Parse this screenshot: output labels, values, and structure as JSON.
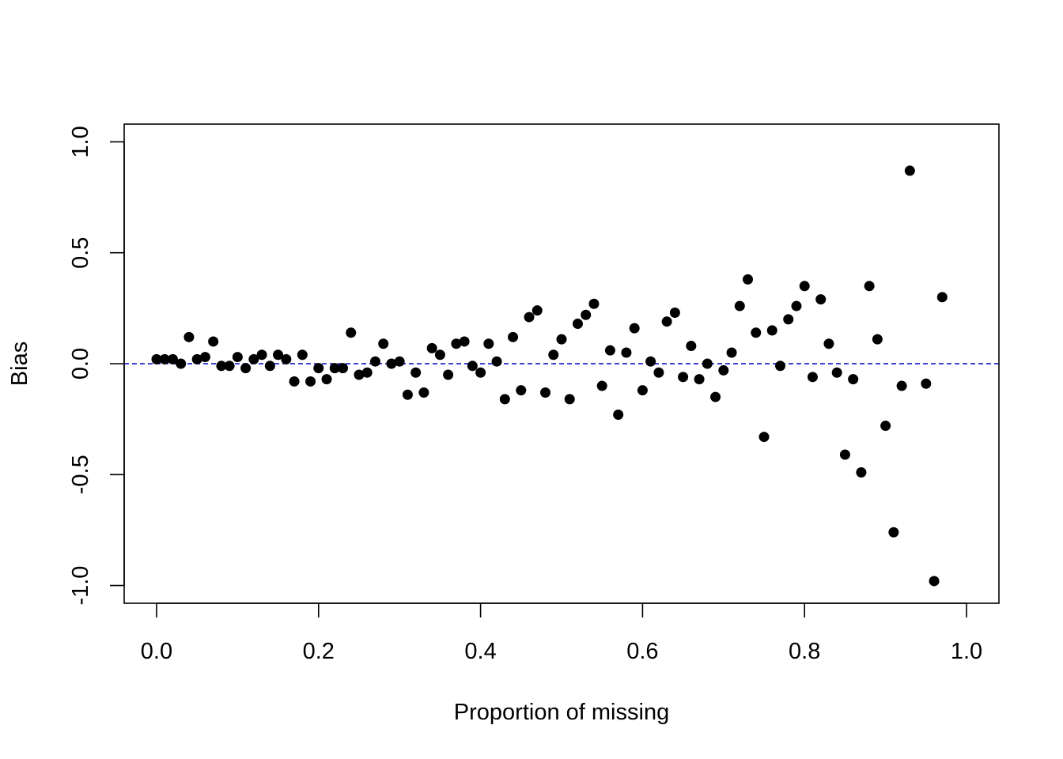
{
  "chart_data": {
    "type": "scatter",
    "title": "",
    "xlabel": "Proportion of missing",
    "ylabel": "Bias",
    "xlim": [
      -0.04,
      1.04
    ],
    "ylim": [
      -1.08,
      1.08
    ],
    "x_ticks": [
      0.0,
      0.2,
      0.4,
      0.6,
      0.8,
      1.0
    ],
    "x_tick_labels": [
      "0.0",
      "0.2",
      "0.4",
      "0.6",
      "0.8",
      "1.0"
    ],
    "y_ticks": [
      -1.0,
      -0.5,
      0.0,
      0.5,
      1.0
    ],
    "y_tick_labels": [
      "-1.0",
      "-0.5",
      "0.0",
      "0.5",
      "1.0"
    ],
    "grid": false,
    "point_color": "#000000",
    "reference_line": {
      "y": 0,
      "style": "dashed",
      "color": "#0000cc"
    },
    "points": [
      [
        0.0,
        0.02
      ],
      [
        0.01,
        0.02
      ],
      [
        0.02,
        0.02
      ],
      [
        0.03,
        0.0
      ],
      [
        0.04,
        0.12
      ],
      [
        0.05,
        0.02
      ],
      [
        0.06,
        0.03
      ],
      [
        0.07,
        0.1
      ],
      [
        0.08,
        -0.01
      ],
      [
        0.09,
        -0.01
      ],
      [
        0.1,
        0.03
      ],
      [
        0.11,
        -0.02
      ],
      [
        0.12,
        0.02
      ],
      [
        0.13,
        0.04
      ],
      [
        0.14,
        -0.01
      ],
      [
        0.15,
        0.04
      ],
      [
        0.16,
        0.02
      ],
      [
        0.17,
        -0.08
      ],
      [
        0.18,
        0.04
      ],
      [
        0.19,
        -0.08
      ],
      [
        0.2,
        -0.02
      ],
      [
        0.21,
        -0.07
      ],
      [
        0.22,
        -0.02
      ],
      [
        0.23,
        -0.02
      ],
      [
        0.24,
        0.14
      ],
      [
        0.25,
        -0.05
      ],
      [
        0.26,
        -0.04
      ],
      [
        0.27,
        0.01
      ],
      [
        0.28,
        0.09
      ],
      [
        0.29,
        0.0
      ],
      [
        0.3,
        0.01
      ],
      [
        0.31,
        -0.14
      ],
      [
        0.32,
        -0.04
      ],
      [
        0.33,
        -0.13
      ],
      [
        0.34,
        0.07
      ],
      [
        0.35,
        0.04
      ],
      [
        0.36,
        -0.05
      ],
      [
        0.37,
        0.09
      ],
      [
        0.38,
        0.1
      ],
      [
        0.39,
        -0.01
      ],
      [
        0.4,
        -0.04
      ],
      [
        0.41,
        0.09
      ],
      [
        0.42,
        0.01
      ],
      [
        0.43,
        -0.16
      ],
      [
        0.44,
        0.12
      ],
      [
        0.45,
        -0.12
      ],
      [
        0.46,
        0.21
      ],
      [
        0.47,
        0.24
      ],
      [
        0.48,
        -0.13
      ],
      [
        0.49,
        0.04
      ],
      [
        0.5,
        0.11
      ],
      [
        0.51,
        -0.16
      ],
      [
        0.52,
        0.18
      ],
      [
        0.53,
        0.22
      ],
      [
        0.54,
        0.27
      ],
      [
        0.55,
        -0.1
      ],
      [
        0.56,
        0.06
      ],
      [
        0.57,
        -0.23
      ],
      [
        0.58,
        0.05
      ],
      [
        0.59,
        0.16
      ],
      [
        0.6,
        -0.12
      ],
      [
        0.61,
        0.01
      ],
      [
        0.62,
        -0.04
      ],
      [
        0.63,
        0.19
      ],
      [
        0.64,
        0.23
      ],
      [
        0.65,
        -0.06
      ],
      [
        0.66,
        0.08
      ],
      [
        0.67,
        -0.07
      ],
      [
        0.68,
        0.0
      ],
      [
        0.69,
        -0.15
      ],
      [
        0.7,
        -0.03
      ],
      [
        0.71,
        0.05
      ],
      [
        0.72,
        0.26
      ],
      [
        0.73,
        0.38
      ],
      [
        0.74,
        0.14
      ],
      [
        0.75,
        -0.33
      ],
      [
        0.76,
        0.15
      ],
      [
        0.77,
        -0.01
      ],
      [
        0.78,
        0.2
      ],
      [
        0.79,
        0.26
      ],
      [
        0.8,
        0.35
      ],
      [
        0.81,
        -0.06
      ],
      [
        0.82,
        0.29
      ],
      [
        0.83,
        0.09
      ],
      [
        0.84,
        -0.04
      ],
      [
        0.85,
        -0.41
      ],
      [
        0.86,
        -0.07
      ],
      [
        0.87,
        -0.49
      ],
      [
        0.88,
        0.35
      ],
      [
        0.89,
        0.11
      ],
      [
        0.9,
        -0.28
      ],
      [
        0.91,
        -0.76
      ],
      [
        0.92,
        -0.1
      ],
      [
        0.93,
        0.87
      ],
      [
        0.95,
        -0.09
      ],
      [
        0.96,
        -0.98
      ],
      [
        0.97,
        0.3
      ]
    ]
  }
}
